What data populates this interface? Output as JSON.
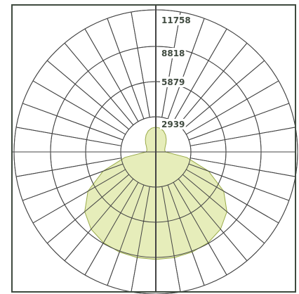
{
  "chart_data": {
    "type": "polar",
    "title": "",
    "unit": "",
    "radial_ticks": [
      2939,
      5879,
      8818,
      11758
    ],
    "radial_tick_labels": [
      "2939",
      "5879",
      "8818",
      "11758"
    ],
    "radial_max": 11758,
    "angular_step_deg": 10,
    "grid": true,
    "series": [
      {
        "fill_color": "#e6edba",
        "stroke_color": "#9aab4a",
        "points": [
          {
            "angle": 0,
            "value": 8900
          },
          {
            "angle": 10,
            "value": 8880
          },
          {
            "angle": 20,
            "value": 8820
          },
          {
            "angle": 30,
            "value": 8680
          },
          {
            "angle": 40,
            "value": 8350
          },
          {
            "angle": 50,
            "value": 7700
          },
          {
            "angle": 60,
            "value": 6500
          },
          {
            "angle": 70,
            "value": 4650
          },
          {
            "angle": 80,
            "value": 2600
          },
          {
            "angle": 90,
            "value": 800
          },
          {
            "angle": 100,
            "value": 750
          },
          {
            "angle": 110,
            "value": 800
          },
          {
            "angle": 120,
            "value": 900
          },
          {
            "angle": 130,
            "value": 1100
          },
          {
            "angle": 140,
            "value": 1350
          },
          {
            "angle": 150,
            "value": 1620
          },
          {
            "angle": 160,
            "value": 1850
          },
          {
            "angle": 170,
            "value": 2000
          },
          {
            "angle": 180,
            "value": 2050
          }
        ]
      }
    ]
  },
  "colors": {
    "border": "#3f4a3f",
    "grid": "#444444",
    "axis": "#444444",
    "label_text": "#3f4a3f",
    "label_bg": "#ffffff"
  }
}
